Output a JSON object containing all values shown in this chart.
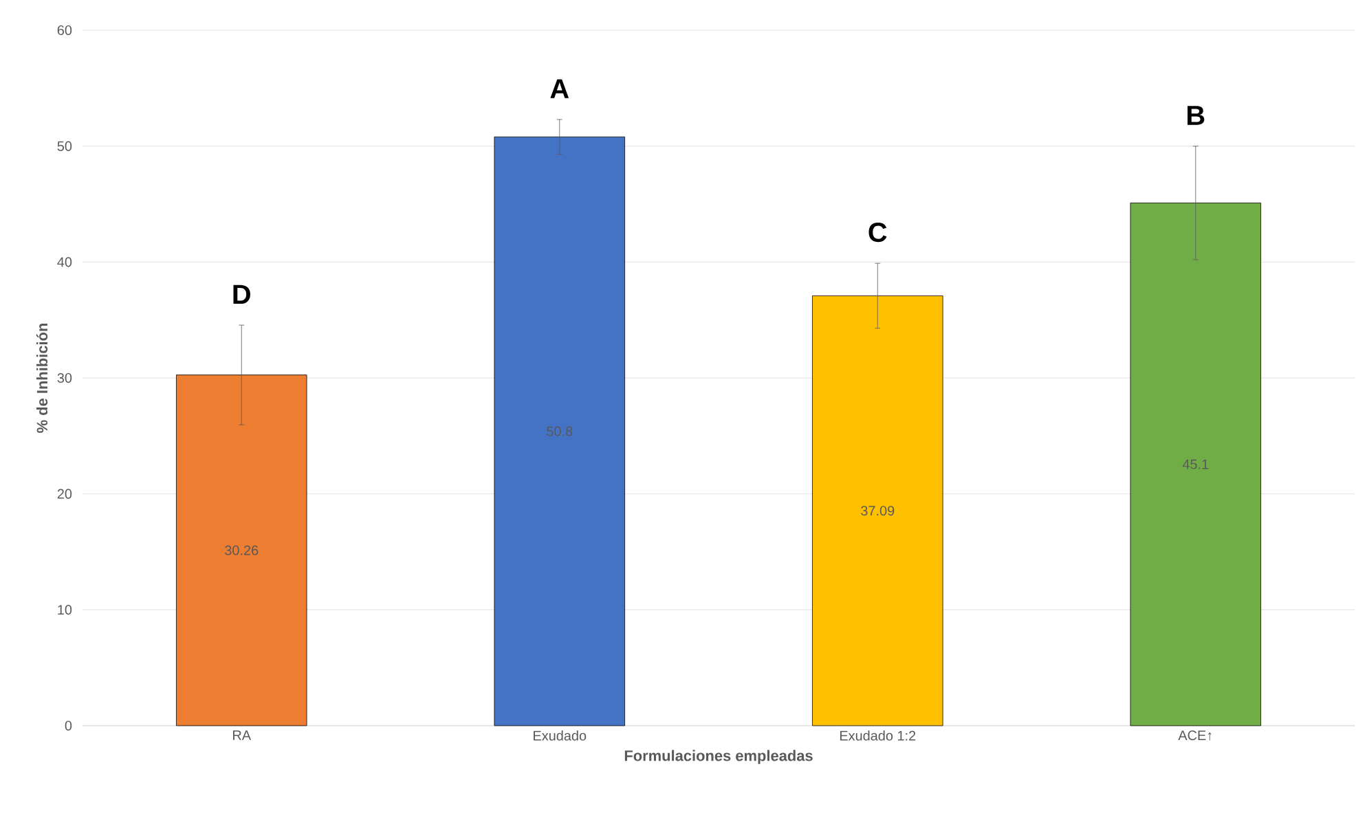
{
  "chart_data": {
    "type": "bar",
    "xlabel": "Formulaciones empleadas",
    "ylabel": "% de Inhibición",
    "categories": [
      "RA",
      "Exudado",
      "Exudado 1:2",
      "ACE↑"
    ],
    "values": [
      30.26,
      50.8,
      37.09,
      45.1
    ],
    "colors": [
      "#ed7d31",
      "#4472c4",
      "#ffc000",
      "#70ad47"
    ],
    "errors": [
      4.3,
      1.5,
      2.8,
      4.9
    ],
    "data_labels": true,
    "ylim": [
      0,
      60
    ],
    "yticks": [
      0,
      10,
      20,
      30,
      40,
      50,
      60
    ],
    "grid": "y",
    "annotations": [
      "D",
      "A",
      "C",
      "B"
    ]
  }
}
